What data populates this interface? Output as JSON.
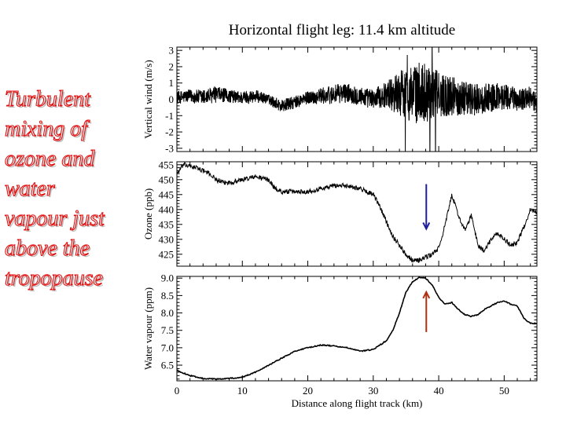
{
  "slide": {
    "title": "Horizontal flight leg: 11.4 km altitude",
    "side_text": [
      "Turbulent",
      "mixing of",
      "ozone and",
      "water",
      "vapour just",
      "above the",
      "tropopause"
    ],
    "colors": {
      "side_text": "#e01010",
      "ozone_arrow": "#1f1f9e",
      "water_arrow": "#b03010",
      "trace": "#000000"
    }
  },
  "chart_data": [
    {
      "type": "line",
      "title": "",
      "xlabel": "",
      "ylabel": "Vertical wind (m/s)",
      "xlim": [
        0,
        55
      ],
      "ylim": [
        -3.2,
        3.2
      ],
      "yticks": [
        -3,
        -2,
        -1,
        0,
        1,
        2,
        3
      ],
      "x": [
        0,
        2,
        4,
        6,
        8,
        10,
        12,
        14,
        16,
        18,
        20,
        22,
        24,
        26,
        28,
        30,
        32,
        34,
        36,
        38,
        40,
        42,
        44,
        46,
        48,
        50,
        52,
        54,
        55
      ],
      "series": [
        {
          "values": [
            0.1,
            0.2,
            0.1,
            0.3,
            0.2,
            0.1,
            0.2,
            0.0,
            -0.4,
            -0.2,
            0.1,
            0.2,
            0.3,
            0.4,
            0.2,
            0.0,
            0.3,
            0.4,
            0.3,
            0.5,
            0.3,
            0.2,
            0.1,
            0.0,
            0.1,
            0.2,
            0.0,
            0.1,
            -0.3
          ],
          "amplitude": [
            0.4,
            0.4,
            0.5,
            0.5,
            0.4,
            0.4,
            0.4,
            0.3,
            0.4,
            0.4,
            0.4,
            0.5,
            0.6,
            0.6,
            0.6,
            0.6,
            0.8,
            1.4,
            1.8,
            1.9,
            1.4,
            1.2,
            1.1,
            1.0,
            0.9,
            0.8,
            0.7,
            0.7,
            0.6
          ]
        }
      ]
    },
    {
      "type": "line",
      "title": "",
      "xlabel": "",
      "ylabel": "Ozone (ppb)",
      "xlim": [
        0,
        55
      ],
      "ylim": [
        421,
        456
      ],
      "yticks": [
        425,
        430,
        435,
        440,
        445,
        450,
        455
      ],
      "x": [
        0,
        1,
        3,
        5,
        6,
        7,
        8,
        10,
        12,
        14,
        15,
        16,
        18,
        20,
        22,
        24,
        26,
        28,
        29,
        30,
        31,
        32,
        33,
        34,
        35,
        36,
        37,
        38,
        39,
        40,
        41,
        42,
        43,
        44,
        45,
        46,
        47,
        48,
        49,
        50,
        51,
        52,
        53,
        54,
        55
      ],
      "series": [
        {
          "values": [
            452,
            455,
            454,
            452,
            450,
            449,
            449,
            450,
            451,
            450,
            447,
            446,
            446,
            446,
            447,
            448,
            448,
            447,
            446,
            445,
            441,
            436,
            431,
            428,
            425,
            423,
            423,
            424,
            425,
            427,
            435,
            445,
            438,
            433,
            438,
            428,
            426,
            430,
            432,
            430,
            428,
            429,
            434,
            440,
            439
          ],
          "amplitude": 0.8
        }
      ],
      "annotations": [
        {
          "type": "arrow",
          "direction": "down",
          "x": 38.1,
          "y_from": 448.5,
          "y_to": 433.5
        }
      ]
    },
    {
      "type": "line",
      "title": "",
      "xlabel": "Distance along flight track (km)",
      "ylabel": "Water vapour (ppm)",
      "xlim": [
        0,
        55
      ],
      "ylim": [
        6.05,
        9.05
      ],
      "yticks": [
        6.5,
        7.0,
        7.5,
        8.0,
        8.5,
        9.0
      ],
      "xticks": [
        0,
        10,
        20,
        30,
        40,
        50
      ],
      "x": [
        0,
        2,
        4,
        6,
        8,
        10,
        12,
        14,
        16,
        18,
        20,
        22,
        24,
        26,
        28,
        30,
        32,
        33,
        34,
        35,
        36,
        37,
        38,
        39,
        40,
        41,
        42,
        43,
        44,
        45,
        46,
        47,
        48,
        49,
        50,
        51,
        52,
        53,
        54,
        55
      ],
      "series": [
        {
          "values": [
            6.35,
            6.2,
            6.12,
            6.1,
            6.12,
            6.15,
            6.3,
            6.5,
            6.7,
            6.9,
            7.0,
            7.08,
            7.05,
            7.0,
            6.9,
            6.95,
            7.2,
            7.5,
            8.0,
            8.6,
            8.9,
            9.02,
            9.0,
            8.8,
            8.45,
            8.25,
            8.3,
            8.1,
            7.95,
            7.9,
            7.95,
            8.1,
            8.2,
            8.3,
            8.35,
            8.25,
            8.2,
            7.85,
            7.7,
            7.7
          ],
          "amplitude": 0.015
        }
      ],
      "annotations": [
        {
          "type": "arrow",
          "direction": "up",
          "x": 38.1,
          "y_from": 7.45,
          "y_to": 8.6
        }
      ]
    }
  ]
}
